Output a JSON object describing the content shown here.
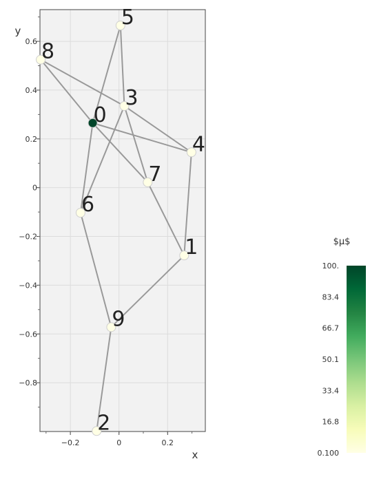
{
  "chart_data": {
    "type": "scatter",
    "xlabel": "x",
    "ylabel": "y",
    "xlim": [
      -0.325,
      0.355
    ],
    "ylim": [
      -1.0,
      0.73
    ],
    "grid": true,
    "x_ticks": [
      {
        "value": -0.2,
        "label": "−0.2"
      },
      {
        "value": 0,
        "label": "0"
      },
      {
        "value": 0.2,
        "label": "0.2"
      }
    ],
    "y_ticks": [
      {
        "value": 0.6,
        "label": "0.6"
      },
      {
        "value": 0.4,
        "label": "0.4"
      },
      {
        "value": 0.2,
        "label": "0.2"
      },
      {
        "value": 0,
        "label": "0"
      },
      {
        "value": -0.2,
        "label": "−0.2"
      },
      {
        "value": -0.4,
        "label": "−0.4"
      },
      {
        "value": -0.6,
        "label": "−0.6"
      },
      {
        "value": -0.8,
        "label": "−0.8"
      }
    ],
    "nodes": [
      {
        "id": "0",
        "x": -0.108,
        "y": 0.265,
        "mu": 100
      },
      {
        "id": "1",
        "x": 0.268,
        "y": -0.278,
        "mu": 0.1
      },
      {
        "id": "2",
        "x": -0.092,
        "y": -0.998,
        "mu": 0.1
      },
      {
        "id": "3",
        "x": 0.022,
        "y": 0.335,
        "mu": 0.1
      },
      {
        "id": "4",
        "x": 0.298,
        "y": 0.145,
        "mu": 0.1
      },
      {
        "id": "5",
        "x": 0.006,
        "y": 0.665,
        "mu": 0.1
      },
      {
        "id": "6",
        "x": -0.158,
        "y": -0.103,
        "mu": 0.1
      },
      {
        "id": "7",
        "x": 0.118,
        "y": 0.022,
        "mu": 0.1
      },
      {
        "id": "8",
        "x": -0.322,
        "y": 0.525,
        "mu": 0.1
      },
      {
        "id": "9",
        "x": -0.032,
        "y": -0.572,
        "mu": 0.1
      }
    ],
    "edges": [
      [
        "8",
        "0"
      ],
      [
        "8",
        "3"
      ],
      [
        "0",
        "5"
      ],
      [
        "0",
        "4"
      ],
      [
        "0",
        "7"
      ],
      [
        "0",
        "6"
      ],
      [
        "5",
        "3"
      ],
      [
        "3",
        "6"
      ],
      [
        "3",
        "4"
      ],
      [
        "3",
        "7"
      ],
      [
        "4",
        "1"
      ],
      [
        "7",
        "1"
      ],
      [
        "1",
        "9"
      ],
      [
        "6",
        "9"
      ],
      [
        "9",
        "2"
      ]
    ],
    "colorbar": {
      "title": "$μ$",
      "range": [
        0.1,
        100
      ],
      "ticks": [
        "0.100",
        "16.8",
        "33.4",
        "50.1",
        "66.7",
        "83.4",
        "100."
      ],
      "colors": [
        "#ffffe5",
        "#f7fcb9",
        "#d9f0a3",
        "#addd8e",
        "#78c679",
        "#41ab5d",
        "#238443",
        "#006837",
        "#004529"
      ]
    }
  }
}
